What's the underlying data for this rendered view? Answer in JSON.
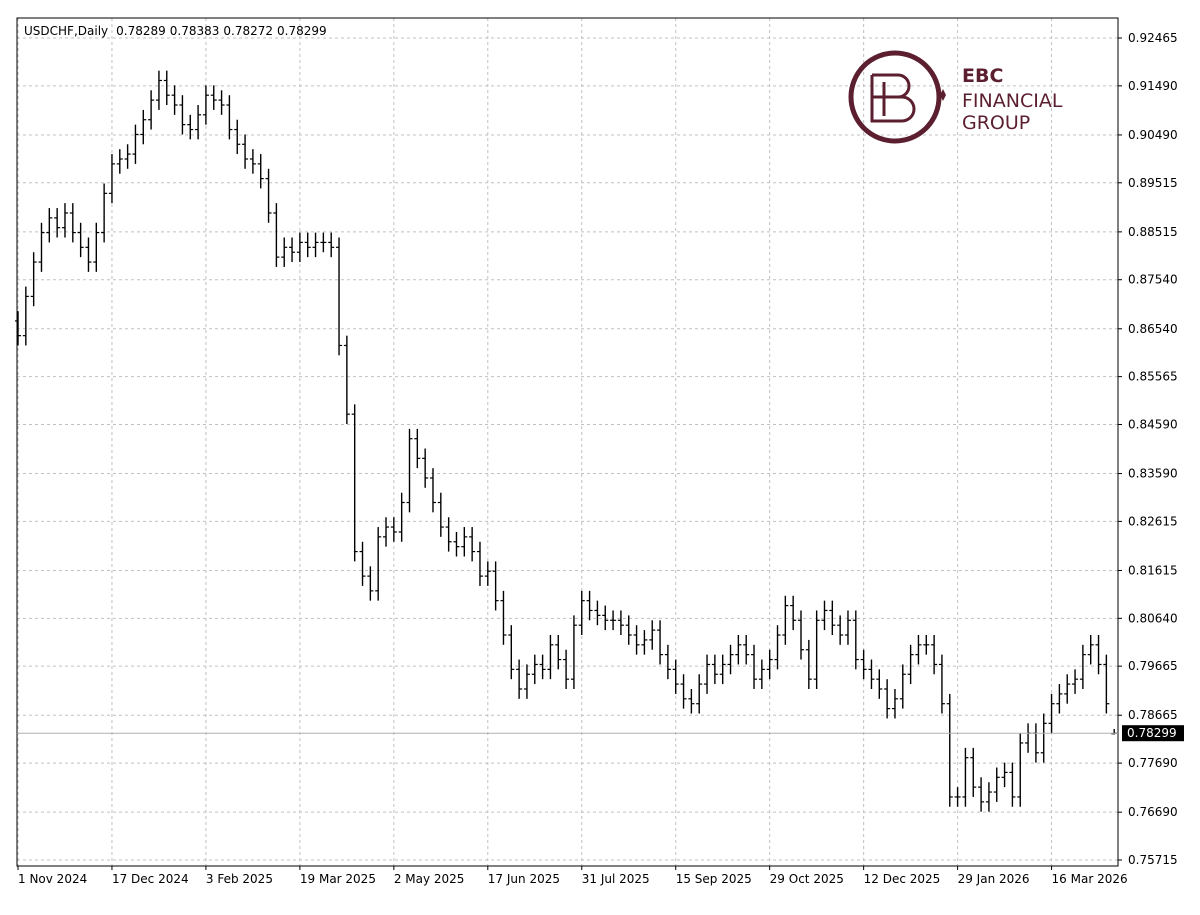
{
  "chart_data": {
    "type": "ohlc",
    "title": "USDCHF,Daily",
    "color": "#000000",
    "grid": true,
    "ylim": [
      0.75593,
      0.92873
    ],
    "yticks": [
      0.92465,
      {
        "value": 0.9149,
        "label": "0.91490"
      },
      {
        "value": 0.9049,
        "label": "0.90490"
      },
      0.89515,
      0.88515,
      {
        "value": 0.8754,
        "label": "0.87540"
      },
      {
        "value": 0.8654,
        "label": "0.86540"
      },
      0.85565,
      {
        "value": 0.8459,
        "label": "0.84590"
      },
      {
        "value": 0.8359,
        "label": "0.83590"
      },
      0.82615,
      0.81615,
      {
        "value": 0.8064,
        "label": "0.80640"
      },
      0.79665,
      0.78665,
      {
        "value": 0.7769,
        "label": "0.77690"
      },
      {
        "value": 0.7669,
        "label": "0.76690"
      },
      0.75715
    ],
    "categories": [
      "1 Nov 2024",
      null,
      null,
      null,
      null,
      null,
      null,
      null,
      null,
      null,
      null,
      null,
      "17 Dec 2024",
      null,
      null,
      null,
      null,
      null,
      null,
      null,
      null,
      null,
      null,
      null,
      "3 Feb 2025",
      null,
      null,
      null,
      null,
      null,
      null,
      null,
      null,
      null,
      null,
      null,
      "19 Mar 2025",
      null,
      null,
      null,
      null,
      null,
      null,
      null,
      null,
      null,
      null,
      null,
      "2 May 2025",
      null,
      null,
      null,
      null,
      null,
      null,
      null,
      null,
      null,
      null,
      null,
      "17 Jun 2025",
      null,
      null,
      null,
      null,
      null,
      null,
      null,
      null,
      null,
      null,
      null,
      "31 Jul 2025",
      null,
      null,
      null,
      null,
      null,
      null,
      null,
      null,
      null,
      null,
      null,
      "15 Sep 2025",
      null,
      null,
      null,
      null,
      null,
      null,
      null,
      null,
      null,
      null,
      null,
      "29 Oct 2025",
      null,
      null,
      null,
      null,
      null,
      null,
      null,
      null,
      null,
      null,
      null,
      "12 Dec 2025",
      null,
      null,
      null,
      null,
      null,
      null,
      null,
      null,
      null,
      null,
      null,
      "29 Jan 2026",
      null,
      null,
      null,
      null,
      null,
      null,
      null,
      null,
      null,
      null,
      null,
      "16 Mar 2026",
      null,
      null,
      null,
      null,
      null,
      null,
      null,
      null
    ],
    "open": [
      0.867,
      0.864,
      0.872,
      0.879,
      0.885,
      0.888,
      0.886,
      0.889,
      0.885,
      0.882,
      0.879,
      0.885,
      0.893,
      0.899,
      0.9,
      0.901,
      0.905,
      0.908,
      0.912,
      0.916,
      0.913,
      0.911,
      0.907,
      0.906,
      0.909,
      0.913,
      0.912,
      0.911,
      0.906,
      0.903,
      0.9,
      0.899,
      0.896,
      0.889,
      0.88,
      0.882,
      0.881,
      0.883,
      0.882,
      0.883,
      0.883,
      0.882,
      0.862,
      0.848,
      0.82,
      0.815,
      0.812,
      0.823,
      0.825,
      0.824,
      0.83,
      0.843,
      0.839,
      0.835,
      0.83,
      0.825,
      0.822,
      0.821,
      0.823,
      0.82,
      0.815,
      0.816,
      0.81,
      0.803,
      0.796,
      0.792,
      0.795,
      0.797,
      0.796,
      0.801,
      0.798,
      0.794,
      0.805,
      0.81,
      0.808,
      0.807,
      0.806,
      0.806,
      0.805,
      0.803,
      0.801,
      0.802,
      0.804,
      0.799,
      0.796,
      0.793,
      0.79,
      0.789,
      0.793,
      0.797,
      0.795,
      0.797,
      0.799,
      0.801,
      0.799,
      0.794,
      0.796,
      0.798,
      0.803,
      0.809,
      0.806,
      0.8,
      0.794,
      0.806,
      0.808,
      0.805,
      0.803,
      0.806,
      0.798,
      0.796,
      0.794,
      0.792,
      0.788,
      0.79,
      0.795,
      0.799,
      0.801,
      0.801,
      0.797,
      0.789,
      0.77,
      0.77,
      0.778,
      0.772,
      0.769,
      0.771,
      0.774,
      0.775,
      0.77,
      0.781,
      0.783,
      0.779,
      0.785,
      0.789,
      0.791,
      0.793,
      0.794,
      0.799,
      0.801,
      0.797,
      0.78289
    ],
    "high": [
      0.869,
      0.874,
      0.881,
      0.887,
      0.89,
      0.89,
      0.891,
      0.891,
      0.887,
      0.884,
      0.887,
      0.895,
      0.901,
      0.902,
      0.903,
      0.907,
      0.91,
      0.914,
      0.918,
      0.918,
      0.915,
      0.913,
      0.909,
      0.911,
      0.915,
      0.915,
      0.914,
      0.913,
      0.908,
      0.905,
      0.902,
      0.901,
      0.898,
      0.891,
      0.884,
      0.884,
      0.885,
      0.885,
      0.885,
      0.885,
      0.885,
      0.884,
      0.864,
      0.85,
      0.822,
      0.817,
      0.825,
      0.827,
      0.827,
      0.832,
      0.845,
      0.845,
      0.841,
      0.837,
      0.832,
      0.827,
      0.824,
      0.825,
      0.825,
      0.822,
      0.818,
      0.818,
      0.812,
      0.805,
      0.798,
      0.797,
      0.799,
      0.799,
      0.803,
      0.803,
      0.8,
      0.807,
      0.812,
      0.812,
      0.81,
      0.809,
      0.808,
      0.808,
      0.807,
      0.805,
      0.804,
      0.806,
      0.806,
      0.801,
      0.798,
      0.795,
      0.792,
      0.795,
      0.799,
      0.799,
      0.799,
      0.801,
      0.803,
      0.803,
      0.801,
      0.798,
      0.8,
      0.805,
      0.811,
      0.811,
      0.808,
      0.802,
      0.808,
      0.81,
      0.81,
      0.807,
      0.808,
      0.808,
      0.8,
      0.798,
      0.796,
      0.794,
      0.792,
      0.797,
      0.801,
      0.803,
      0.803,
      0.803,
      0.799,
      0.791,
      0.772,
      0.78,
      0.78,
      0.774,
      0.773,
      0.776,
      0.777,
      0.777,
      0.783,
      0.785,
      0.785,
      0.787,
      0.791,
      0.793,
      0.795,
      0.796,
      0.801,
      0.803,
      0.803,
      0.799,
      0.78383
    ],
    "low": [
      0.862,
      0.862,
      0.87,
      0.877,
      0.883,
      0.884,
      0.884,
      0.883,
      0.88,
      0.877,
      0.877,
      0.883,
      0.891,
      0.897,
      0.898,
      0.899,
      0.903,
      0.906,
      0.91,
      0.911,
      0.909,
      0.905,
      0.904,
      0.904,
      0.907,
      0.91,
      0.909,
      0.904,
      0.901,
      0.898,
      0.897,
      0.894,
      0.887,
      0.878,
      0.878,
      0.879,
      0.879,
      0.88,
      0.88,
      0.881,
      0.88,
      0.86,
      0.846,
      0.818,
      0.813,
      0.81,
      0.81,
      0.821,
      0.822,
      0.822,
      0.828,
      0.837,
      0.833,
      0.828,
      0.823,
      0.82,
      0.819,
      0.819,
      0.818,
      0.813,
      0.813,
      0.808,
      0.801,
      0.794,
      0.79,
      0.79,
      0.793,
      0.794,
      0.794,
      0.796,
      0.792,
      0.792,
      0.803,
      0.806,
      0.805,
      0.804,
      0.804,
      0.803,
      0.801,
      0.799,
      0.799,
      0.8,
      0.797,
      0.794,
      0.791,
      0.788,
      0.787,
      0.787,
      0.791,
      0.793,
      0.793,
      0.795,
      0.797,
      0.797,
      0.792,
      0.792,
      0.794,
      0.796,
      0.801,
      0.804,
      0.798,
      0.792,
      0.792,
      0.804,
      0.803,
      0.801,
      0.801,
      0.796,
      0.794,
      0.792,
      0.79,
      0.786,
      0.786,
      0.788,
      0.793,
      0.797,
      0.799,
      0.795,
      0.787,
      0.768,
      0.768,
      0.768,
      0.77,
      0.767,
      0.767,
      0.769,
      0.772,
      0.768,
      0.768,
      0.779,
      0.777,
      0.777,
      0.783,
      0.787,
      0.789,
      0.791,
      0.792,
      0.797,
      0.795,
      0.787,
      0.78272
    ],
    "close": [
      0.864,
      0.872,
      0.879,
      0.885,
      0.888,
      0.886,
      0.889,
      0.885,
      0.882,
      0.879,
      0.885,
      0.893,
      0.899,
      0.9,
      0.901,
      0.905,
      0.908,
      0.912,
      0.916,
      0.913,
      0.911,
      0.907,
      0.906,
      0.909,
      0.913,
      0.912,
      0.911,
      0.906,
      0.903,
      0.9,
      0.899,
      0.896,
      0.889,
      0.88,
      0.882,
      0.881,
      0.883,
      0.882,
      0.883,
      0.883,
      0.882,
      0.862,
      0.848,
      0.82,
      0.815,
      0.812,
      0.823,
      0.825,
      0.824,
      0.83,
      0.843,
      0.839,
      0.835,
      0.83,
      0.825,
      0.822,
      0.821,
      0.823,
      0.82,
      0.815,
      0.816,
      0.81,
      0.803,
      0.796,
      0.792,
      0.795,
      0.797,
      0.796,
      0.801,
      0.798,
      0.794,
      0.805,
      0.81,
      0.808,
      0.807,
      0.806,
      0.806,
      0.805,
      0.803,
      0.801,
      0.802,
      0.804,
      0.799,
      0.796,
      0.793,
      0.79,
      0.789,
      0.793,
      0.797,
      0.795,
      0.797,
      0.799,
      0.801,
      0.799,
      0.794,
      0.796,
      0.798,
      0.803,
      0.809,
      0.806,
      0.8,
      0.794,
      0.806,
      0.808,
      0.805,
      0.803,
      0.806,
      0.798,
      0.796,
      0.794,
      0.792,
      0.788,
      0.79,
      0.795,
      0.799,
      0.801,
      0.801,
      0.797,
      0.789,
      0.77,
      0.77,
      0.778,
      0.772,
      0.769,
      0.771,
      0.774,
      0.775,
      0.77,
      0.781,
      0.783,
      0.779,
      0.785,
      0.789,
      0.791,
      0.793,
      0.794,
      0.799,
      0.801,
      0.797,
      0.789,
      0.78299
    ]
  },
  "logo": {
    "line1": "EBC",
    "line2": "FINANCIAL",
    "line3": "GROUP"
  }
}
